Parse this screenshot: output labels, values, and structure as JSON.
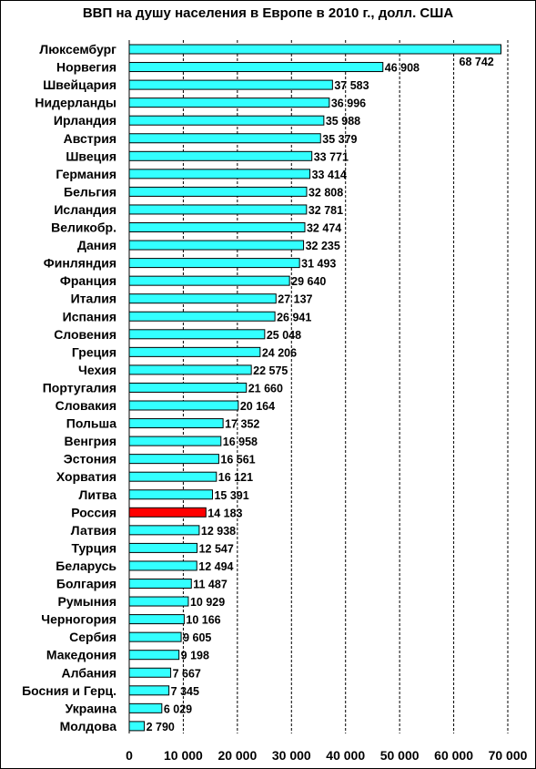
{
  "chart_data": {
    "type": "bar",
    "orientation": "horizontal",
    "title": "ВВП на душу населения в Европе в 2010 г., долл. США",
    "xlabel": "",
    "ylabel": "",
    "xlim": [
      0,
      70000
    ],
    "x_ticks": [
      0,
      10000,
      20000,
      30000,
      40000,
      50000,
      60000,
      70000
    ],
    "x_tick_labels": [
      "0",
      "10 000",
      "20 000",
      "30 000",
      "40 000",
      "50 000",
      "60 000",
      "70 000"
    ],
    "grid": "vertical dashed",
    "bar_color": "#33ffff",
    "highlight_color": "#ff0000",
    "highlight_category": "Россия",
    "categories": [
      "Люксембург",
      "Норвегия",
      "Швейцария",
      "Нидерланды",
      "Ирландия",
      "Австрия",
      "Швеция",
      "Германия",
      "Бельгия",
      "Исландия",
      "Великобр.",
      "Дания",
      "Финляндия",
      "Франция",
      "Италия",
      "Испания",
      "Словения",
      "Греция",
      "Чехия",
      "Португалия",
      "Словакия",
      "Польша",
      "Венгрия",
      "Эстония",
      "Хорватия",
      "Литва",
      "Россия",
      "Латвия",
      "Турция",
      "Беларусь",
      "Болгария",
      "Румыния",
      "Черногория",
      "Сербия",
      "Македония",
      "Албания",
      "Босния и Герц.",
      "Украина",
      "Молдова"
    ],
    "values": [
      68742,
      46908,
      37583,
      36996,
      35988,
      35379,
      33771,
      33414,
      32808,
      32781,
      32474,
      32235,
      31493,
      29640,
      27137,
      26941,
      25048,
      24206,
      22575,
      21660,
      20164,
      17352,
      16958,
      16561,
      16121,
      15391,
      14183,
      12938,
      12547,
      12494,
      11487,
      10929,
      10166,
      9605,
      9198,
      7667,
      7345,
      6029,
      2790
    ],
    "value_labels": [
      "68 742",
      "46 908",
      "37 583",
      "36 996",
      "35 988",
      "35 379",
      "33 771",
      "33 414",
      "32 808",
      "32 781",
      "32 474",
      "32 235",
      "31 493",
      "29 640",
      "27 137",
      "26 941",
      "25 048",
      "24 206",
      "22 575",
      "21 660",
      "20 164",
      "17 352",
      "16 958",
      "16 561",
      "16 121",
      "15 391",
      "14 183",
      "12 938",
      "12 547",
      "12 494",
      "11 487",
      "10 929",
      "10 166",
      "9 605",
      "9 198",
      "7 667",
      "7 345",
      "6 029",
      "2 790"
    ]
  }
}
